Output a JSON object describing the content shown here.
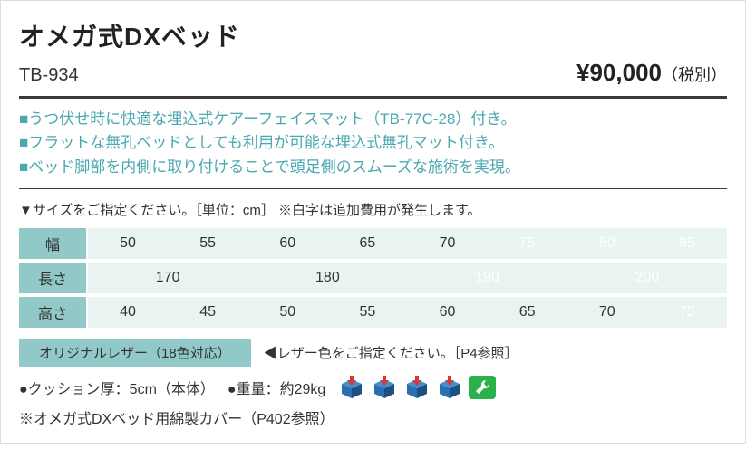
{
  "header": {
    "title": "オメガ式DXベッド",
    "model": "TB-934",
    "price": "¥90,000",
    "price_suffix": "（税別）"
  },
  "features": [
    "■うつ伏せ時に快適な埋込式ケアーフェイスマット（TB-77C-28）付き。",
    "■フラットな無孔ベッドとしても利用が可能な埋込式無孔マット付き。",
    "■ベッド脚部を内側に取り付けることで頭足側のスムーズな施術を実現。"
  ],
  "size_header": "▼サイズをご指定ください。［単位：cm］ ※白字は追加費用が発生します。",
  "size_table": {
    "rows": [
      {
        "label": "幅",
        "cells": [
          {
            "v": "50",
            "span": 1
          },
          {
            "v": "55",
            "span": 1
          },
          {
            "v": "60",
            "span": 1
          },
          {
            "v": "65",
            "span": 1
          },
          {
            "v": "70",
            "span": 1
          },
          {
            "v": "75",
            "span": 1,
            "extra": true
          },
          {
            "v": "80",
            "span": 1,
            "extra": true
          },
          {
            "v": "85",
            "span": 1,
            "extra": true
          }
        ]
      },
      {
        "label": "長さ",
        "cells": [
          {
            "v": "170",
            "span": 2
          },
          {
            "v": "180",
            "span": 2
          },
          {
            "v": "190",
            "span": 2,
            "extra": true
          },
          {
            "v": "200",
            "span": 2,
            "extra": true
          }
        ]
      },
      {
        "label": "高さ",
        "cells": [
          {
            "v": "40",
            "span": 1
          },
          {
            "v": "45",
            "span": 1
          },
          {
            "v": "50",
            "span": 1
          },
          {
            "v": "55",
            "span": 1
          },
          {
            "v": "60",
            "span": 1
          },
          {
            "v": "65",
            "span": 1
          },
          {
            "v": "70",
            "span": 1
          },
          {
            "v": "75",
            "span": 1,
            "extra": true
          }
        ]
      }
    ],
    "header_bg": "#90c9c8",
    "cell_bg": "#e9f3f2",
    "extra_color": "#ffffff",
    "normal_color": "#333333"
  },
  "leather": {
    "label": "オリジナルレザー（18色対応）",
    "note": "◀レザー色をご指定ください。［P4参照］"
  },
  "specs": {
    "cushion": "●クッション厚：5cm（本体）",
    "weight": "●重量：約29kg"
  },
  "icons": {
    "cube_count": 4,
    "cube_body": "#2b6fb3",
    "cube_top": "#3f90d4",
    "cube_side": "#1d4f80",
    "arrow": "#d73838",
    "wrench_bg": "#2bb04a",
    "wrench_fg": "#ffffff"
  },
  "footer": "※オメガ式DXベッド用綿製カバー（P402参照）"
}
